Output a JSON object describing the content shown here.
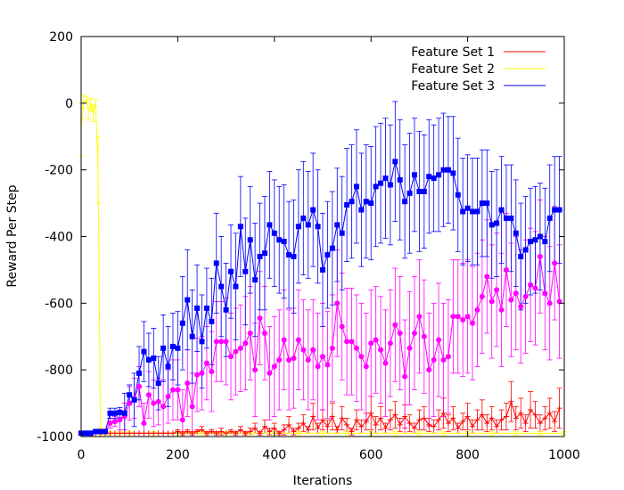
{
  "chart_data": {
    "type": "line",
    "title": "",
    "xlabel": "Iterations",
    "ylabel": "Reward Per Step",
    "xlim": [
      0,
      1000
    ],
    "ylim": [
      -1000,
      200
    ],
    "xticks": [
      0,
      200,
      400,
      600,
      800,
      1000
    ],
    "yticks": [
      -1000,
      -800,
      -600,
      -400,
      -200,
      0,
      200
    ],
    "xtick_labels": [
      "0",
      "200",
      "400",
      "600",
      "800",
      "1000"
    ],
    "ytick_labels": [
      "-1000",
      "-800",
      "-600",
      "-400",
      "-200",
      "0",
      "200"
    ],
    "grid": false,
    "legend_position": "top-right",
    "series": [
      {
        "name": "Feature Set 1",
        "color": "#ff0000",
        "marker": "plus",
        "x": [
          0,
          10,
          20,
          30,
          40,
          50,
          60,
          70,
          80,
          90,
          100,
          110,
          120,
          130,
          140,
          150,
          160,
          170,
          180,
          190,
          200,
          210,
          220,
          230,
          240,
          250,
          260,
          270,
          280,
          290,
          300,
          310,
          320,
          330,
          340,
          350,
          360,
          370,
          380,
          390,
          400,
          410,
          420,
          430,
          440,
          450,
          460,
          470,
          480,
          490,
          500,
          510,
          520,
          530,
          540,
          550,
          560,
          570,
          580,
          590,
          600,
          610,
          620,
          630,
          640,
          650,
          660,
          670,
          680,
          690,
          700,
          710,
          720,
          730,
          740,
          750,
          760,
          770,
          780,
          790,
          800,
          810,
          820,
          830,
          840,
          850,
          860,
          870,
          880,
          890,
          900,
          910,
          920,
          930,
          940,
          950,
          960,
          970,
          980,
          990
        ],
        "y": [
          -990,
          -990,
          -990,
          -990,
          -990,
          -990,
          -990,
          -990,
          -990,
          -990,
          -990,
          -990,
          -990,
          -990,
          -990,
          -990,
          -990,
          -990,
          -990,
          -990,
          -985,
          -990,
          -985,
          -990,
          -985,
          -980,
          -990,
          -985,
          -990,
          -985,
          -990,
          -985,
          -990,
          -980,
          -990,
          -985,
          -975,
          -990,
          -970,
          -985,
          -975,
          -990,
          -980,
          -965,
          -985,
          -975,
          -960,
          -980,
          -940,
          -975,
          -950,
          -970,
          -940,
          -980,
          -945,
          -965,
          -985,
          -950,
          -970,
          -955,
          -930,
          -965,
          -945,
          -975,
          -950,
          -935,
          -965,
          -940,
          -960,
          -975,
          -950,
          -945,
          -965,
          -970,
          -950,
          -930,
          -960,
          -945,
          -975,
          -955,
          -940,
          -970,
          -950,
          -935,
          -960,
          -945,
          -970,
          -950,
          -940,
          -895,
          -945,
          -930,
          -960,
          -920,
          -935,
          -960,
          -945,
          -930,
          -955,
          -915
        ],
        "err": [
          0,
          0,
          0,
          0,
          0,
          0,
          0,
          0,
          0,
          0,
          0,
          0,
          0,
          0,
          0,
          0,
          0,
          0,
          0,
          0,
          5,
          5,
          5,
          5,
          5,
          10,
          5,
          5,
          5,
          10,
          5,
          5,
          5,
          10,
          5,
          10,
          15,
          5,
          20,
          10,
          15,
          5,
          15,
          25,
          10,
          15,
          25,
          10,
          40,
          15,
          30,
          20,
          40,
          10,
          35,
          20,
          10,
          30,
          20,
          25,
          50,
          25,
          35,
          15,
          30,
          40,
          20,
          35,
          25,
          15,
          30,
          35,
          20,
          20,
          30,
          45,
          25,
          35,
          15,
          25,
          40,
          20,
          30,
          45,
          25,
          35,
          20,
          30,
          40,
          60,
          35,
          45,
          25,
          55,
          40,
          25,
          35,
          45,
          30,
          60
        ]
      },
      {
        "name": "Feature Set 2",
        "color": "#ffff00",
        "marker": "none",
        "x": [
          0,
          5,
          10,
          15,
          20,
          25,
          30,
          35,
          40,
          50,
          60,
          80,
          100,
          150,
          200,
          250,
          300,
          350,
          400,
          450,
          500,
          550,
          600,
          650,
          700,
          750,
          800,
          850,
          900,
          950,
          1000
        ],
        "y": [
          -80,
          5,
          10,
          -20,
          -5,
          -30,
          0,
          -200,
          -985,
          -990,
          -990,
          -990,
          -990,
          -990,
          -990,
          -990,
          -990,
          -990,
          -990,
          -990,
          -990,
          -990,
          -990,
          -990,
          -990,
          -990,
          -990,
          -990,
          -990,
          -990,
          -990
        ],
        "err": [
          80,
          20,
          10,
          30,
          20,
          25,
          10,
          100,
          10,
          5,
          5,
          5,
          5,
          5,
          5,
          5,
          5,
          5,
          5,
          5,
          5,
          5,
          5,
          5,
          5,
          5,
          5,
          5,
          5,
          5,
          5
        ]
      },
      {
        "name": "Feature Set 3",
        "color": "#0000ff",
        "marker": "square",
        "x": [
          0,
          10,
          20,
          30,
          40,
          50,
          60,
          70,
          80,
          90,
          100,
          110,
          120,
          130,
          140,
          150,
          160,
          170,
          180,
          190,
          200,
          210,
          220,
          230,
          240,
          250,
          260,
          270,
          280,
          290,
          300,
          310,
          320,
          330,
          340,
          350,
          360,
          370,
          380,
          390,
          400,
          410,
          420,
          430,
          440,
          450,
          460,
          470,
          480,
          490,
          500,
          510,
          520,
          530,
          540,
          550,
          560,
          570,
          580,
          590,
          600,
          610,
          620,
          630,
          640,
          650,
          660,
          670,
          680,
          690,
          700,
          710,
          720,
          730,
          740,
          750,
          760,
          770,
          780,
          790,
          800,
          810,
          820,
          830,
          840,
          850,
          860,
          870,
          880,
          890,
          900,
          910,
          920,
          930,
          940,
          950,
          960,
          970,
          980,
          990
        ],
        "y": [
          -990,
          -990,
          -990,
          -985,
          -985,
          -985,
          -930,
          -930,
          -928,
          -930,
          -875,
          -890,
          -810,
          -745,
          -770,
          -765,
          -840,
          -735,
          -790,
          -730,
          -735,
          -660,
          -590,
          -700,
          -615,
          -715,
          -615,
          -655,
          -480,
          -550,
          -620,
          -505,
          -550,
          -370,
          -505,
          -410,
          -530,
          -460,
          -450,
          -365,
          -390,
          -410,
          -415,
          -455,
          -460,
          -370,
          -345,
          -365,
          -320,
          -370,
          -500,
          -455,
          -435,
          -365,
          -390,
          -305,
          -295,
          -250,
          -320,
          -295,
          -300,
          -250,
          -240,
          -225,
          -245,
          -175,
          -230,
          -295,
          -270,
          -215,
          -265,
          -265,
          -220,
          -225,
          -215,
          -200,
          -200,
          -210,
          -275,
          -325,
          -315,
          -325,
          -325,
          -300,
          -300,
          -365,
          -360,
          -320,
          -345,
          -345,
          -390,
          -460,
          -440,
          -415,
          -410,
          -400,
          -415,
          -345,
          -320,
          -320
        ],
        "err": [
          5,
          5,
          5,
          5,
          5,
          5,
          15,
          15,
          15,
          60,
          30,
          80,
          80,
          90,
          80,
          90,
          80,
          100,
          120,
          100,
          110,
          140,
          150,
          140,
          130,
          140,
          120,
          130,
          150,
          150,
          140,
          140,
          160,
          150,
          160,
          160,
          170,
          160,
          170,
          160,
          160,
          160,
          170,
          160,
          170,
          170,
          170,
          160,
          170,
          170,
          170,
          160,
          170,
          170,
          170,
          170,
          170,
          170,
          170,
          170,
          170,
          180,
          180,
          180,
          180,
          180,
          180,
          170,
          180,
          170,
          180,
          170,
          170,
          160,
          170,
          170,
          160,
          170,
          170,
          160,
          160,
          160,
          160,
          160,
          160,
          160,
          160,
          160,
          160,
          160,
          160,
          160,
          160,
          160,
          160,
          160,
          160,
          160,
          160,
          160
        ]
      },
      {
        "name": "",
        "color": "#ff00ff",
        "marker": "circle",
        "x": [
          0,
          10,
          20,
          30,
          40,
          50,
          60,
          70,
          80,
          90,
          100,
          110,
          120,
          130,
          140,
          150,
          160,
          170,
          180,
          190,
          200,
          210,
          220,
          230,
          240,
          250,
          260,
          270,
          280,
          290,
          300,
          310,
          320,
          330,
          340,
          350,
          360,
          370,
          380,
          390,
          400,
          410,
          420,
          430,
          440,
          450,
          460,
          470,
          480,
          490,
          500,
          510,
          520,
          530,
          540,
          550,
          560,
          570,
          580,
          590,
          600,
          610,
          620,
          630,
          640,
          650,
          660,
          670,
          680,
          690,
          700,
          710,
          720,
          730,
          740,
          750,
          760,
          770,
          780,
          790,
          800,
          810,
          820,
          830,
          840,
          850,
          860,
          870,
          880,
          890,
          900,
          910,
          920,
          930,
          940,
          950,
          960,
          970,
          980,
          990
        ],
        "y": [
          -990,
          -990,
          -990,
          -985,
          -985,
          -985,
          -960,
          -955,
          -950,
          -940,
          -900,
          -885,
          -850,
          -960,
          -875,
          -900,
          -895,
          -910,
          -880,
          -860,
          -860,
          -950,
          -840,
          -910,
          -815,
          -810,
          -780,
          -805,
          -715,
          -715,
          -715,
          -760,
          -745,
          -735,
          -720,
          -690,
          -800,
          -645,
          -690,
          -810,
          -790,
          -770,
          -710,
          -770,
          -765,
          -710,
          -740,
          -770,
          -740,
          -790,
          -760,
          -785,
          -735,
          -600,
          -670,
          -715,
          -715,
          -735,
          -760,
          -790,
          -720,
          -710,
          -740,
          -780,
          -720,
          -665,
          -690,
          -820,
          -735,
          -690,
          -640,
          -700,
          -800,
          -770,
          -710,
          -770,
          -760,
          -640,
          -640,
          -650,
          -640,
          -660,
          -620,
          -580,
          -520,
          -595,
          -560,
          -620,
          -500,
          -590,
          -570,
          -610,
          -580,
          -545,
          -555,
          -460,
          -570,
          -600,
          -480,
          -595
        ],
        "err": [
          5,
          5,
          5,
          5,
          5,
          5,
          15,
          15,
          30,
          40,
          50,
          60,
          60,
          60,
          70,
          70,
          70,
          80,
          80,
          90,
          90,
          90,
          100,
          100,
          110,
          110,
          110,
          120,
          120,
          120,
          130,
          130,
          130,
          130,
          140,
          140,
          140,
          140,
          140,
          140,
          150,
          150,
          150,
          150,
          150,
          150,
          150,
          150,
          150,
          160,
          160,
          160,
          160,
          160,
          160,
          160,
          160,
          160,
          160,
          160,
          160,
          160,
          160,
          160,
          160,
          170,
          170,
          170,
          170,
          170,
          170,
          170,
          170,
          170,
          170,
          170,
          170,
          170,
          170,
          170,
          170,
          170,
          170,
          170,
          170,
          170,
          170,
          170,
          170,
          170,
          170,
          170,
          170,
          170,
          170,
          170,
          170,
          170,
          170,
          170
        ]
      }
    ]
  }
}
